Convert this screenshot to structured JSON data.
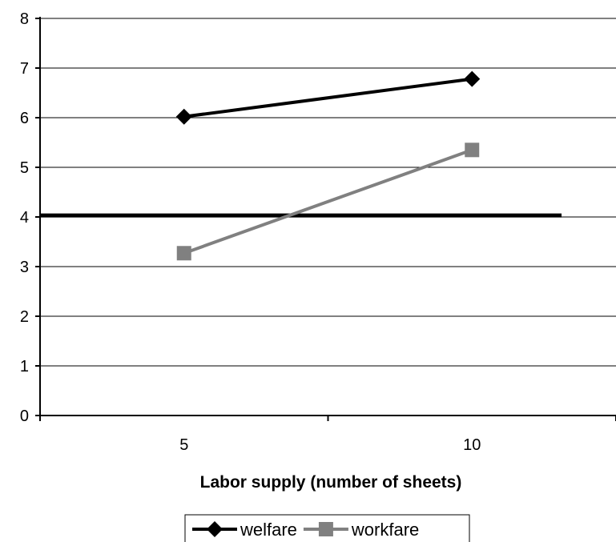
{
  "chart_data": {
    "type": "line",
    "categories": [
      "5",
      "10"
    ],
    "series": [
      {
        "name": "welfare",
        "values": [
          6.02,
          6.78
        ],
        "color": "#000000",
        "marker": "diamond"
      },
      {
        "name": "workfare",
        "values": [
          3.27,
          5.35
        ],
        "color": "#808080",
        "marker": "square"
      }
    ],
    "reference_line": {
      "value": 4.03,
      "color": "#000000"
    },
    "title": "",
    "xlabel": "Labor supply (number of sheets)",
    "ylabel": "",
    "ylim": [
      0,
      8
    ],
    "yticks": [
      "0",
      "1",
      "2",
      "3",
      "4",
      "5",
      "6",
      "7",
      "8"
    ],
    "grid": true,
    "legend_position": "bottom"
  }
}
